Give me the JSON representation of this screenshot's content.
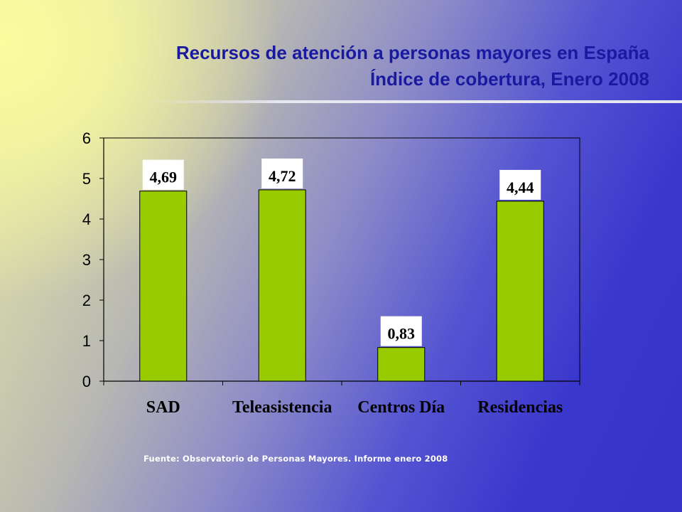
{
  "slide": {
    "title_line1": "Recursos de atención a personas mayores en España",
    "title_line2": "Índice de cobertura, Enero 2008",
    "source": "Fuente: Observatorio de Personas Mayores. Informe enero 2008"
  },
  "chart_data": {
    "type": "bar",
    "categories": [
      "SAD",
      "Teleasistencia",
      "Centros Día",
      "Residencias"
    ],
    "values": [
      4.69,
      4.72,
      0.83,
      4.44
    ],
    "data_labels": [
      "4,69",
      "4,72",
      "0,83",
      "4,44"
    ],
    "yticks": [
      "0",
      "1",
      "2",
      "3",
      "4",
      "5",
      "6"
    ],
    "ylim": [
      0,
      6
    ],
    "grid": false,
    "bar_color": "#99cc00",
    "label_box_color": "#ffffff"
  }
}
